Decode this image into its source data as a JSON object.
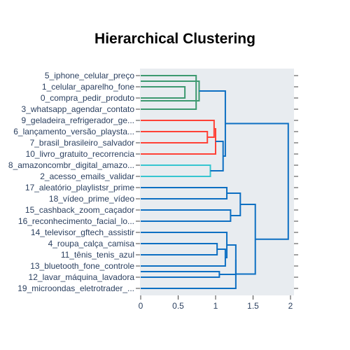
{
  "chart_data": {
    "type": "dendrogram",
    "title": "Hierarchical Clustering",
    "orientation": "horizontal",
    "xlim": [
      0,
      2.05
    ],
    "x_ticks": [
      0,
      0.5,
      1,
      1.5,
      2
    ],
    "x_tick_labels": [
      "0",
      "0.5",
      "1",
      "1.5",
      "2"
    ],
    "leaves": [
      "5_iphone_celular_preço",
      "1_celular_aparelho_fone",
      "0_compra_pedir_produto",
      "3_whatsapp_agendar_contato",
      "9_geladeira_refrigerador_ge...",
      "6_lançamento_versão_playsta...",
      "7_brasil_brasileiro_salvador",
      "10_livro_gratuito_recorrencia",
      "8_amazoncombr_digital_amazo...",
      "2_acesso_emails_validar",
      "17_aleatório_playlistsr_prime",
      "18_vídeo_prime_vídeo",
      "15_cashback_zoom_caçador",
      "16_reconhecimento_facial_lo...",
      "14_televisor_gftech_assistir",
      "4_roupa_calça_camisa",
      "11_tênis_tenis_azul",
      "13_bluetooth_fone_controle",
      "12_lavar_máquina_lavadora",
      "19_microondas_eletrotrader_..."
    ],
    "colors": {
      "green": "#3d9970",
      "red": "#ff4136",
      "cyan": "#35c5d0",
      "blue": "#0d6fc2",
      "plot_bg": "#e8ecf0"
    },
    "links": [
      {
        "a": 1,
        "b": 2,
        "height": 0.59,
        "color": "green"
      },
      {
        "a": 0,
        "b": 3,
        "height": 0.74,
        "color": "green"
      },
      {
        "a": 0.5,
        "b": 2.25,
        "height": 0.78,
        "color": "green"
      },
      {
        "a": 5,
        "b": 6,
        "height": 0.89,
        "color": "red"
      },
      {
        "a": 4,
        "b": 5.5,
        "height": 0.98,
        "color": "red"
      },
      {
        "a": 4.75,
        "b": 7,
        "height": 1.0,
        "color": "red"
      },
      {
        "a": 8,
        "b": 9,
        "height": 0.93,
        "color": "cyan"
      },
      {
        "a": 5.875,
        "b": 8.5,
        "height": 1.1,
        "color": "blue"
      },
      {
        "a": 1.375,
        "b": 7.1875,
        "height": 1.13,
        "color": "blue"
      },
      {
        "a": 10,
        "b": 11,
        "height": 1.15,
        "color": "blue"
      },
      {
        "a": 12,
        "b": 13,
        "height": 1.2,
        "color": "blue"
      },
      {
        "a": 10.5,
        "b": 12.5,
        "height": 1.33,
        "color": "blue"
      },
      {
        "a": 15,
        "b": 16,
        "height": 1.02,
        "color": "blue"
      },
      {
        "a": 15.5,
        "b": 17,
        "height": 1.13,
        "color": "blue"
      },
      {
        "a": 14,
        "b": 16.25,
        "height": 1.15,
        "color": "blue"
      },
      {
        "a": 17.5,
        "b": 18,
        "height": 1.05,
        "color": "blue"
      },
      {
        "a": 15.125,
        "b": 17.75,
        "height": 1.27,
        "color": "blue"
      },
      {
        "a": 16.4375,
        "b": 19,
        "height": 1.27,
        "color": "blue"
      },
      {
        "a": 11.5,
        "b": 17.71875,
        "height": 1.53,
        "color": "blue"
      },
      {
        "a": 4.28125,
        "b": 14.609375,
        "height": 1.97,
        "color": "blue"
      }
    ]
  }
}
